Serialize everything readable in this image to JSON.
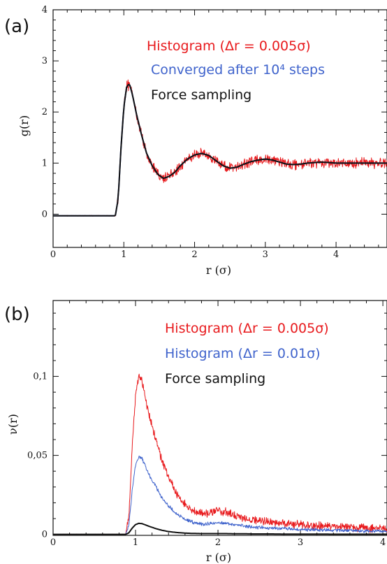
{
  "chart_data": [
    {
      "type": "line",
      "panel_label": "(a)",
      "xlabel": "r  (σ)",
      "ylabel": "g(r)",
      "xlim": [
        0,
        4.72
      ],
      "ylim": [
        -0.65,
        4
      ],
      "xticks": [
        "0",
        "1",
        "2",
        "3",
        "4"
      ],
      "yticks": [
        "0",
        "1",
        "2",
        "3",
        "4"
      ],
      "grid": false,
      "legend_placement": "top-right",
      "series": [
        {
          "name": "Histogram (Δr = 0.005σ)",
          "color": "#e8191c",
          "noisy": true,
          "noise_amplitude": 0.09,
          "x": [
            0,
            0.88,
            0.92,
            0.96,
            1.0,
            1.04,
            1.08,
            1.12,
            1.18,
            1.25,
            1.32,
            1.4,
            1.48,
            1.56,
            1.64,
            1.72,
            1.8,
            1.9,
            2.0,
            2.1,
            2.2,
            2.3,
            2.4,
            2.5,
            2.6,
            2.7,
            2.8,
            2.9,
            3.0,
            3.1,
            3.2,
            3.3,
            3.4,
            3.5,
            3.6,
            3.7,
            3.8,
            3.9,
            4.0,
            4.2,
            4.4,
            4.6,
            4.72
          ],
          "y": [
            -0.03,
            -0.03,
            0.3,
            1.3,
            2.1,
            2.5,
            2.55,
            2.35,
            1.95,
            1.55,
            1.2,
            0.95,
            0.78,
            0.7,
            0.74,
            0.82,
            0.95,
            1.08,
            1.16,
            1.19,
            1.15,
            1.05,
            0.95,
            0.9,
            0.92,
            0.98,
            1.03,
            1.06,
            1.08,
            1.06,
            1.02,
            0.98,
            0.97,
            0.98,
            1.0,
            1.01,
            1.02,
            1.01,
            1.0,
            1.0,
            1.0,
            1.0,
            1.0
          ]
        },
        {
          "name": "Converged after 10⁴ steps",
          "color": "#3f63cc",
          "noisy": false,
          "x": [
            0,
            0.88,
            0.92,
            0.96,
            1.0,
            1.04,
            1.08,
            1.12,
            1.18,
            1.25,
            1.32,
            1.4,
            1.48,
            1.56,
            1.64,
            1.72,
            1.8,
            1.9,
            2.0,
            2.1,
            2.2,
            2.3,
            2.4,
            2.5,
            2.6,
            2.7,
            2.8,
            2.9,
            3.0,
            3.1,
            3.2,
            3.3,
            3.4,
            3.5,
            3.6,
            3.7,
            3.8,
            3.9,
            4.0,
            4.2,
            4.4,
            4.6,
            4.72
          ],
          "y": [
            -0.03,
            -0.03,
            0.3,
            1.3,
            2.1,
            2.5,
            2.55,
            2.35,
            1.95,
            1.55,
            1.2,
            0.95,
            0.78,
            0.7,
            0.74,
            0.82,
            0.95,
            1.08,
            1.16,
            1.19,
            1.15,
            1.05,
            0.95,
            0.9,
            0.92,
            0.98,
            1.03,
            1.06,
            1.08,
            1.06,
            1.02,
            0.98,
            0.97,
            0.98,
            1.0,
            1.01,
            1.02,
            1.01,
            1.0,
            1.0,
            1.0,
            1.0,
            1.0
          ]
        },
        {
          "name": "Force sampling",
          "color": "#111111",
          "noisy": false,
          "x": [
            0,
            0.88,
            0.92,
            0.96,
            1.0,
            1.04,
            1.08,
            1.12,
            1.18,
            1.25,
            1.32,
            1.4,
            1.48,
            1.56,
            1.64,
            1.72,
            1.8,
            1.9,
            2.0,
            2.1,
            2.2,
            2.3,
            2.4,
            2.5,
            2.6,
            2.7,
            2.8,
            2.9,
            3.0,
            3.1,
            3.2,
            3.3,
            3.4,
            3.5,
            3.6,
            3.7,
            3.8,
            3.9,
            4.0,
            4.2,
            4.4,
            4.6,
            4.72
          ],
          "y": [
            -0.03,
            -0.03,
            0.3,
            1.3,
            2.1,
            2.5,
            2.55,
            2.35,
            1.95,
            1.55,
            1.2,
            0.95,
            0.78,
            0.7,
            0.74,
            0.82,
            0.95,
            1.08,
            1.16,
            1.19,
            1.15,
            1.05,
            0.95,
            0.9,
            0.92,
            0.98,
            1.03,
            1.06,
            1.08,
            1.06,
            1.02,
            0.98,
            0.97,
            0.98,
            1.0,
            1.01,
            1.02,
            1.01,
            1.0,
            1.0,
            1.0,
            1.0,
            1.0
          ]
        }
      ]
    },
    {
      "type": "line",
      "panel_label": "(b)",
      "xlabel": "r  (σ)",
      "ylabel": "ν(r)",
      "xlim": [
        0,
        4.05
      ],
      "ylim": [
        -0.0006,
        0.148
      ],
      "xticks": [
        "0",
        "1",
        "2",
        "3",
        "4"
      ],
      "yticks": [
        "0",
        "0,05",
        "0,1"
      ],
      "grid": false,
      "legend_placement": "top-right",
      "series": [
        {
          "name": "Histogram (Δr = 0.005σ)",
          "color": "#e8191c",
          "noisy": true,
          "noise_amplitude": 0.0022,
          "x": [
            0,
            0.88,
            0.92,
            0.96,
            1.0,
            1.04,
            1.08,
            1.12,
            1.18,
            1.25,
            1.32,
            1.4,
            1.5,
            1.6,
            1.7,
            1.8,
            1.9,
            2.0,
            2.1,
            2.2,
            2.3,
            2.4,
            2.6,
            2.8,
            3.0,
            3.2,
            3.4,
            3.6,
            3.8,
            4.05
          ],
          "y": [
            0,
            0,
            0.012,
            0.055,
            0.088,
            0.1,
            0.097,
            0.086,
            0.072,
            0.06,
            0.047,
            0.036,
            0.026,
            0.019,
            0.015,
            0.013,
            0.014,
            0.015,
            0.014,
            0.012,
            0.0105,
            0.009,
            0.008,
            0.007,
            0.006,
            0.0055,
            0.005,
            0.0045,
            0.004,
            0.0035
          ]
        },
        {
          "name": "Histogram (Δr = 0.01σ)",
          "color": "#3f63cc",
          "noisy": true,
          "noise_amplitude": 0.0009,
          "x": [
            0,
            0.88,
            0.92,
            0.96,
            1.0,
            1.04,
            1.08,
            1.12,
            1.18,
            1.25,
            1.32,
            1.4,
            1.5,
            1.6,
            1.7,
            1.8,
            1.9,
            2.0,
            2.1,
            2.2,
            2.3,
            2.4,
            2.6,
            2.8,
            3.0,
            3.2,
            3.4,
            3.6,
            3.8,
            4.05
          ],
          "y": [
            0,
            0,
            0.006,
            0.028,
            0.044,
            0.049,
            0.048,
            0.043,
            0.036,
            0.03,
            0.023,
            0.018,
            0.013,
            0.0095,
            0.0075,
            0.0066,
            0.0068,
            0.0072,
            0.007,
            0.0062,
            0.0054,
            0.0047,
            0.0041,
            0.0036,
            0.0031,
            0.0028,
            0.0026,
            0.0024,
            0.0022,
            0.002
          ]
        },
        {
          "name": "Force sampling",
          "color": "#111111",
          "noisy": false,
          "x": [
            0,
            0.88,
            0.92,
            0.96,
            1.0,
            1.04,
            1.08,
            1.12,
            1.18,
            1.25,
            1.32,
            1.4,
            1.5,
            1.6,
            1.7,
            1.8,
            1.9,
            2.0,
            2.1,
            2.2,
            2.3,
            2.4,
            2.6,
            2.8,
            3.0,
            3.2,
            3.4,
            3.6,
            3.8,
            4.05
          ],
          "y": [
            0,
            0,
            0.001,
            0.004,
            0.0062,
            0.007,
            0.0068,
            0.006,
            0.0048,
            0.0036,
            0.0026,
            0.0018,
            0.0012,
            0.0008,
            0.0006,
            0.0005,
            0.0005,
            0.0005,
            0.0005,
            0.0004,
            0.0004,
            0.0003,
            0.0003,
            0.0002,
            0.0002,
            0.0002,
            0.0001,
            0.0001,
            0.0001,
            0.0001
          ]
        }
      ]
    }
  ]
}
